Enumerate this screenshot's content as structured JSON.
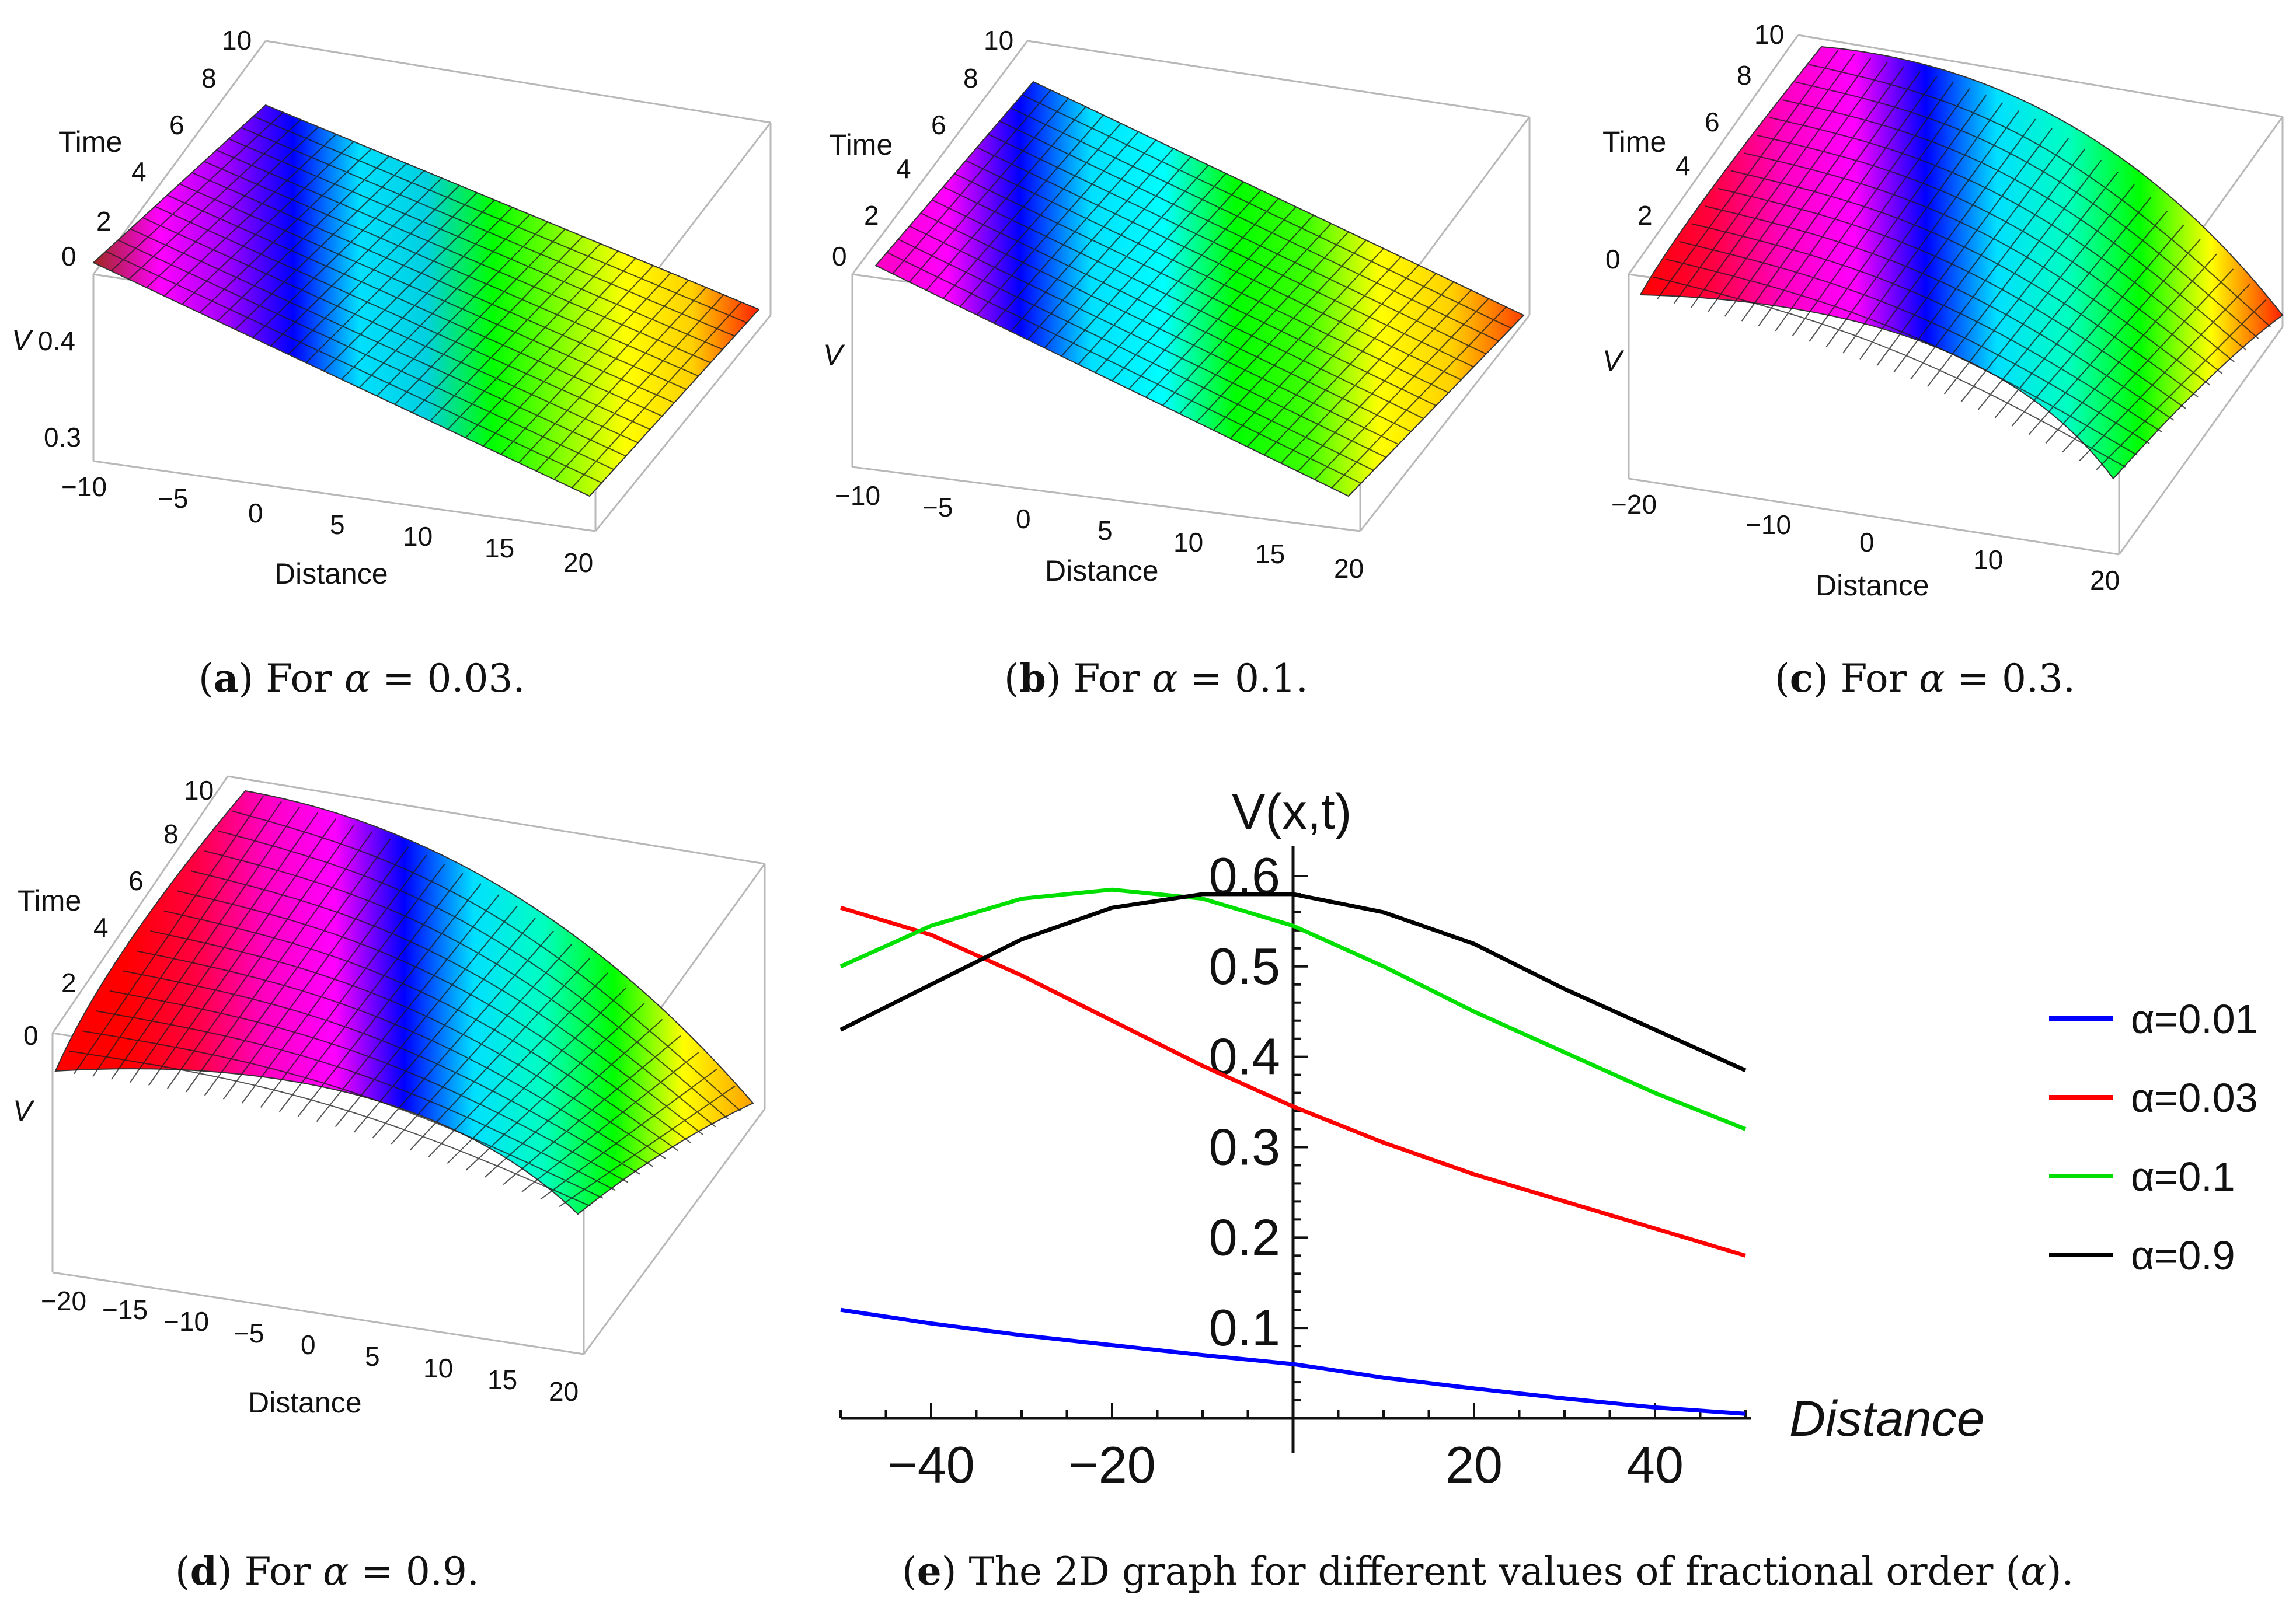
{
  "panels": [
    {
      "id": "a",
      "caption_letter": "a",
      "caption_text": "For",
      "caption_var": "α",
      "caption_value": " = 0.03.",
      "y_axis_label": "Time",
      "z_axis_label": "V",
      "x_axis_label": "Distance",
      "time_ticks": [
        "0",
        "2",
        "4",
        "6",
        "8",
        "10"
      ],
      "v_ticks": [
        "0.4",
        "0.3"
      ],
      "distance_ticks": [
        "−10",
        "−5",
        "0",
        "5",
        "10",
        "15",
        "20"
      ],
      "colors": [
        "#a0281c",
        "#ff00ff",
        "#a000ff",
        "#0000ff",
        "#00e0ff",
        "#00d0e0",
        "#00ff00",
        "#80ff00",
        "#ffff00",
        "#ffd000",
        "#ff2000"
      ]
    },
    {
      "id": "b",
      "caption_letter": "b",
      "caption_text": "For",
      "caption_var": "α",
      "caption_value": " = 0.1.",
      "y_axis_label": "Time",
      "z_axis_label": "V",
      "x_axis_label": "Distance",
      "time_ticks": [
        "0",
        "2",
        "4",
        "6",
        "8",
        "10"
      ],
      "distance_ticks": [
        "−10",
        "−5",
        "0",
        "5",
        "10",
        "15",
        "20"
      ],
      "colors": [
        "#ff00c0",
        "#ff00ff",
        "#0000ff",
        "#00e0ff",
        "#00ffff",
        "#00ff00",
        "#40ff00",
        "#ffff00",
        "#ffd000",
        "#ff4000"
      ]
    },
    {
      "id": "c",
      "caption_letter": "c",
      "caption_text": "For",
      "caption_var": "α",
      "caption_value": " = 0.3.",
      "y_axis_label": "Time",
      "z_axis_label": "V",
      "x_axis_label": "Distance",
      "time_ticks": [
        "0",
        "2",
        "4",
        "6",
        "8",
        "10"
      ],
      "distance_ticks": [
        "−20",
        "−10",
        "0",
        "10",
        "20"
      ],
      "colors": [
        "#ff0000",
        "#ff0040",
        "#ff00c0",
        "#ff00ff",
        "#0000ff",
        "#00e0ff",
        "#00ffc0",
        "#00ff00",
        "#ffff00",
        "#ff2000"
      ]
    },
    {
      "id": "d",
      "caption_letter": "d",
      "caption_text": "For ",
      "caption_var": "α",
      "caption_value": " = 0.9.",
      "y_axis_label": "Time",
      "z_axis_label": "V",
      "x_axis_label": "Distance",
      "time_ticks": [
        "0",
        "2",
        "4",
        "6",
        "8",
        "10"
      ],
      "distance_ticks": [
        "−20",
        "−15",
        "−10",
        "−5",
        "0",
        "5",
        "10",
        "15",
        "20"
      ],
      "colors": [
        "#ff0000",
        "#ff0000",
        "#ff0040",
        "#ff00c0",
        "#ff00ff",
        "#0000ff",
        "#00e0ff",
        "#00ffc0",
        "#00ff00",
        "#ffff00",
        "#ffa000"
      ]
    }
  ],
  "chart_data": {
    "type": "line",
    "caption_letter": "e",
    "caption_text": "The 2D graph for different values of fractional order",
    "caption_var": "α",
    "title": "",
    "ylabel": "V(x,t)",
    "xlabel": "Distance",
    "xlim": [
      -50,
      50
    ],
    "ylim": [
      0,
      0.62
    ],
    "x_ticks": [
      -40,
      -20,
      20,
      40
    ],
    "x_tick_labels": [
      "−40",
      "−20",
      "20",
      "40"
    ],
    "y_ticks": [
      0.1,
      0.2,
      0.3,
      0.4,
      0.5,
      0.6
    ],
    "y_tick_labels": [
      "0.1",
      "0.2",
      "0.3",
      "0.4",
      "0.5",
      "0.6"
    ],
    "legend_position": "right",
    "x": [
      -50,
      -40,
      -30,
      -20,
      -10,
      0,
      10,
      20,
      30,
      40,
      50
    ],
    "series": [
      {
        "name": "α=0.01",
        "color": "#0000ff",
        "values": [
          0.12,
          0.105,
          0.092,
          0.081,
          0.07,
          0.06,
          0.045,
          0.033,
          0.022,
          0.012,
          0.005
        ]
      },
      {
        "name": "α=0.03",
        "color": "#ff0000",
        "values": [
          0.565,
          0.535,
          0.49,
          0.44,
          0.39,
          0.345,
          0.305,
          0.27,
          0.24,
          0.21,
          0.18
        ]
      },
      {
        "name": "α=0.1",
        "color": "#00e000",
        "values": [
          0.5,
          0.545,
          0.575,
          0.585,
          0.575,
          0.545,
          0.5,
          0.45,
          0.405,
          0.36,
          0.32
        ]
      },
      {
        "name": "α=0.9",
        "color": "#000000",
        "values": [
          0.43,
          0.48,
          0.53,
          0.565,
          0.58,
          0.58,
          0.56,
          0.525,
          0.475,
          0.43,
          0.385
        ]
      }
    ]
  }
}
